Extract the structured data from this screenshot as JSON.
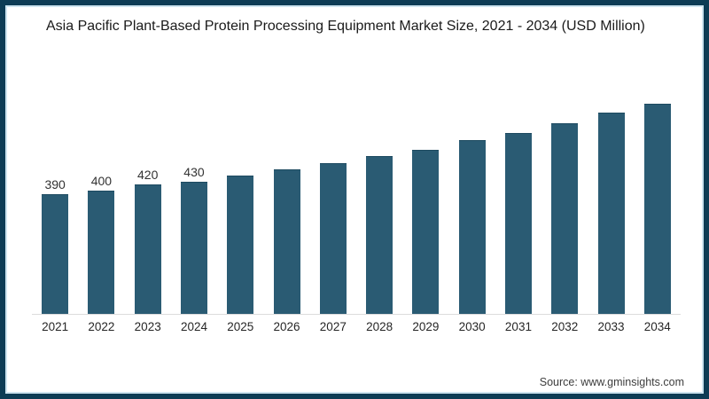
{
  "title": "Asia Pacific Plant-Based Protein Processing Equipment Market Size, 2021 - 2034 (USD Million)",
  "source": {
    "text": "Source: www.gminsights.com"
  },
  "colors": {
    "bar": "#2A5B73",
    "bar_top_edge": "#1D4A60",
    "frame_border": "#0D3C55",
    "frame_inner_line": "#CDE4EF",
    "axis_line": "#DCDCDC",
    "title_text": "#1A1A1A",
    "label_text": "#333333"
  },
  "chart_data": {
    "type": "bar",
    "title": "Asia Pacific Plant-Based Protein Processing Equipment Market Size, 2021 - 2034 (USD Million)",
    "unit": "USD Million",
    "categories": [
      "2021",
      "2022",
      "2023",
      "2024",
      "2025",
      "2026",
      "2027",
      "2028",
      "2029",
      "2030",
      "2031",
      "2032",
      "2033",
      "2034"
    ],
    "values": [
      390,
      400,
      420,
      430,
      450,
      470,
      490,
      515,
      535,
      565,
      590,
      620,
      655,
      685
    ],
    "data_labels": [
      "390",
      "400",
      "420",
      "430",
      "",
      "",
      "",
      "",
      "",
      "",
      "",
      "",
      "",
      ""
    ],
    "xlabel": "",
    "ylabel": "",
    "ylim": [
      0,
      780
    ],
    "grid": false,
    "legend": "none",
    "y_axis_visible": false
  }
}
